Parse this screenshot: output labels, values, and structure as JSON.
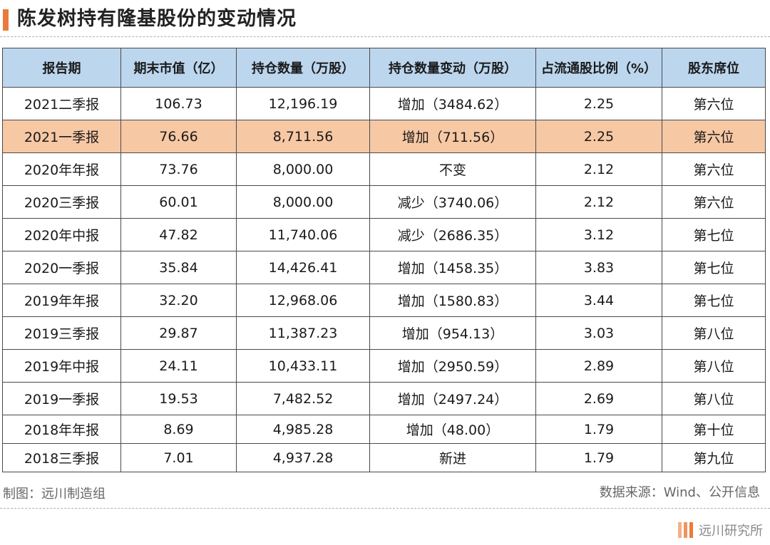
{
  "title": "陈发树持有隆基股份的变动情况",
  "table": {
    "headers": [
      "报告期",
      "期末市值（亿）",
      "持仓数量（万股）",
      "持仓数量变动（万股）",
      "占流通股比例（%）",
      "股东席位"
    ],
    "rows": [
      [
        "2021二季报",
        "106.73",
        "12,196.19",
        "增加（3484.62）",
        "2.25",
        "第六位"
      ],
      [
        "2021一季报",
        "76.66",
        "8,711.56",
        "增加（711.56）",
        "2.25",
        "第六位"
      ],
      [
        "2020年年报",
        "73.76",
        "8,000.00",
        "不变",
        "2.12",
        "第六位"
      ],
      [
        "2020三季报",
        "60.01",
        "8,000.00",
        "减少（3740.06）",
        "2.12",
        "第六位"
      ],
      [
        "2020年中报",
        "47.82",
        "11,740.06",
        "减少（2686.35）",
        "3.12",
        "第七位"
      ],
      [
        "2020一季报",
        "35.84",
        "14,426.41",
        "增加（1458.35）",
        "3.83",
        "第七位"
      ],
      [
        "2019年年报",
        "32.20",
        "12,968.06",
        "增加（1580.83）",
        "3.44",
        "第七位"
      ],
      [
        "2019三季报",
        "29.87",
        "11,387.23",
        "增加（954.13）",
        "3.03",
        "第八位"
      ],
      [
        "2019年中报",
        "24.11",
        "10,433.11",
        "增加（2950.59）",
        "2.89",
        "第八位"
      ],
      [
        "2019一季报",
        "19.53",
        "7,482.52",
        "增加（2497.24）",
        "2.69",
        "第八位"
      ],
      [
        "2018年年报",
        "8.69",
        "4,985.28",
        "增加（48.00）",
        "1.79",
        "第十位"
      ],
      [
        "2018三季报",
        "7.01",
        "4,937.28",
        "新进",
        "1.79",
        "第九位"
      ]
    ]
  },
  "footer": {
    "left": "制图：远川制造组",
    "right": "数据来源：Wind、公开信息"
  },
  "brand": {
    "text": "远川研究所"
  },
  "colors": {
    "accent": "#e97b3a",
    "header_bg": "#bcd6ee",
    "highlight_row": "#f7c8a4"
  }
}
